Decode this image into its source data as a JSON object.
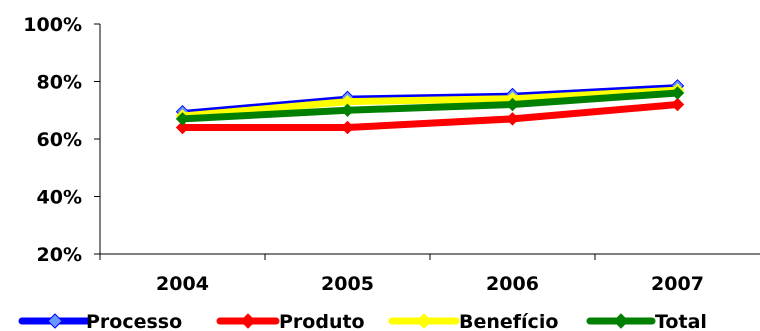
{
  "chart_data": {
    "type": "line",
    "title": "",
    "xlabel": "",
    "ylabel": "",
    "categories": [
      "2004",
      "2005",
      "2006",
      "2007"
    ],
    "ylim": [
      20,
      100
    ],
    "yticks": [
      20,
      40,
      60,
      80,
      100
    ],
    "ytick_labels": [
      "20%",
      "40%",
      "60%",
      "80%",
      "100%"
    ],
    "grid": false,
    "legend_position": "bottom",
    "series": [
      {
        "name": "Processo",
        "values": [
          69.5,
          74.5,
          75.5,
          78.5
        ],
        "color": "#0000ff",
        "marker": "#6699ff"
      },
      {
        "name": "Produto",
        "values": [
          64,
          64,
          67,
          72
        ],
        "color": "#ff0000",
        "marker": "#ff0000"
      },
      {
        "name": "Benefício",
        "values": [
          68,
          73,
          74,
          77
        ],
        "color": "#ffff00",
        "marker": "#ffff00"
      },
      {
        "name": "Total",
        "values": [
          67,
          70,
          72,
          76
        ],
        "color": "#008000",
        "marker": "#008000"
      }
    ]
  }
}
